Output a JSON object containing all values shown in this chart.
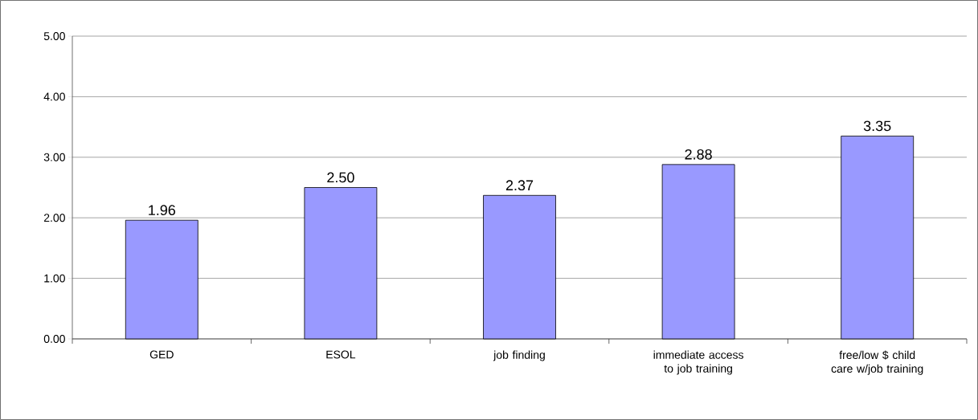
{
  "chart_data": {
    "type": "bar",
    "categories": [
      "GED",
      "ESOL",
      "job finding",
      "immediate access to job training",
      "free/low $ child care w/job training"
    ],
    "values": [
      1.96,
      2.5,
      2.37,
      2.88,
      3.35
    ],
    "value_labels": [
      "1.96",
      "2.50",
      "2.37",
      "2.88",
      "3.35"
    ],
    "color": "#9999ff",
    "ylim": [
      0,
      5
    ],
    "yticks": [
      {
        "value": 0,
        "label": "0.00"
      },
      {
        "value": 1,
        "label": "1.00"
      },
      {
        "value": 2,
        "label": "2.00"
      },
      {
        "value": 3,
        "label": "3.00"
      },
      {
        "value": 4,
        "label": "4.00"
      },
      {
        "value": 5,
        "label": "5.00"
      }
    ],
    "grid": "y"
  }
}
